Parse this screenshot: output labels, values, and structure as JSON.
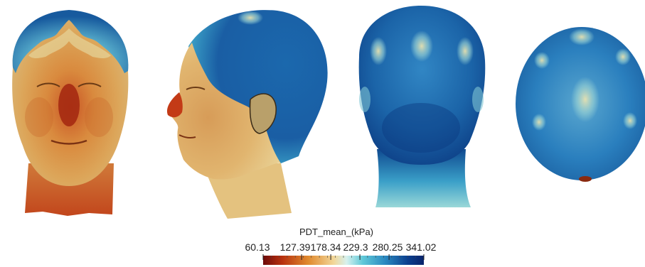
{
  "legend": {
    "title": "PDT_mean_(kPa)",
    "ticks": [
      {
        "value": 60.13,
        "label": "60.13"
      },
      {
        "value": 127.39,
        "label": "127.39"
      },
      {
        "value": 178.34,
        "label": "178.34"
      },
      {
        "value": 229.3,
        "label": "229.3"
      },
      {
        "value": 280.25,
        "label": "280.25"
      },
      {
        "value": 341.02,
        "label": "341.02"
      }
    ],
    "range": [
      60.13,
      341.02
    ],
    "colormap": [
      "#6e0a0a",
      "#b8320f",
      "#e08a2e",
      "#f2d79a",
      "#d6f1ee",
      "#5fc9d8",
      "#2a88c0",
      "#0b3f8e",
      "#08236a"
    ]
  },
  "views": [
    {
      "name": "front-view"
    },
    {
      "name": "side-view"
    },
    {
      "name": "back-view"
    },
    {
      "name": "top-view"
    }
  ],
  "colors": {
    "skin_low": "#b23b14",
    "skin_mid": "#d79a4a",
    "skin_high": "#e9cc86",
    "scalp_light": "#8fd0d6",
    "scalp_mid": "#2e7fbf",
    "scalp_dark": "#0f4e93"
  }
}
